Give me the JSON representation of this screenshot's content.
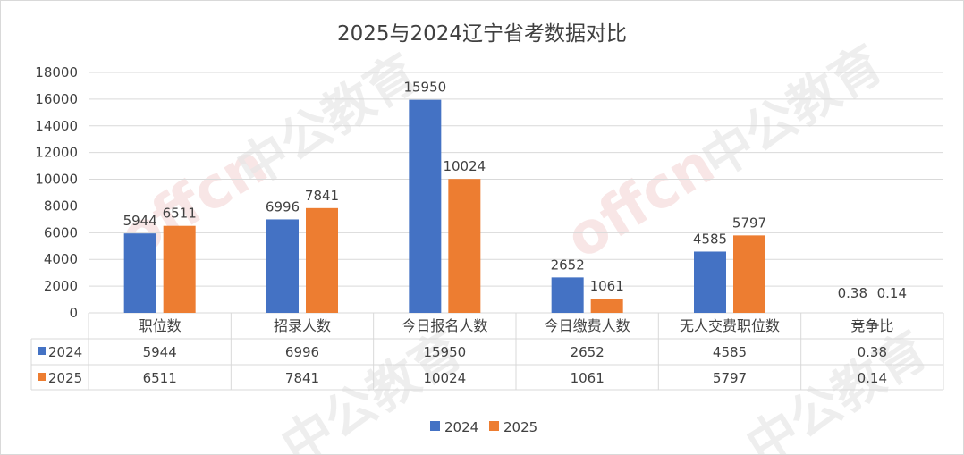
{
  "watermark": [
    "offcn",
    "中公教育"
  ],
  "chart_data": {
    "type": "bar",
    "title": "2025与2024辽宁省考数据对比",
    "categories": [
      "职位数",
      "招录人数",
      "今日报名人数",
      "今日缴费人数",
      "无人交费职位数",
      "竞争比"
    ],
    "series": [
      {
        "name": "2024",
        "color": "#4472c4",
        "values": [
          5944,
          6996,
          15950,
          2652,
          4585,
          0.38
        ]
      },
      {
        "name": "2025",
        "color": "#ed7d31",
        "values": [
          6511,
          7841,
          10024,
          1061,
          5797,
          0.14
        ]
      }
    ],
    "ylim": [
      0,
      18000
    ],
    "yticks": [
      0,
      2000,
      4000,
      6000,
      8000,
      10000,
      12000,
      14000,
      16000,
      18000
    ],
    "grid": true,
    "data_table": true,
    "legend_position": "bottom"
  }
}
